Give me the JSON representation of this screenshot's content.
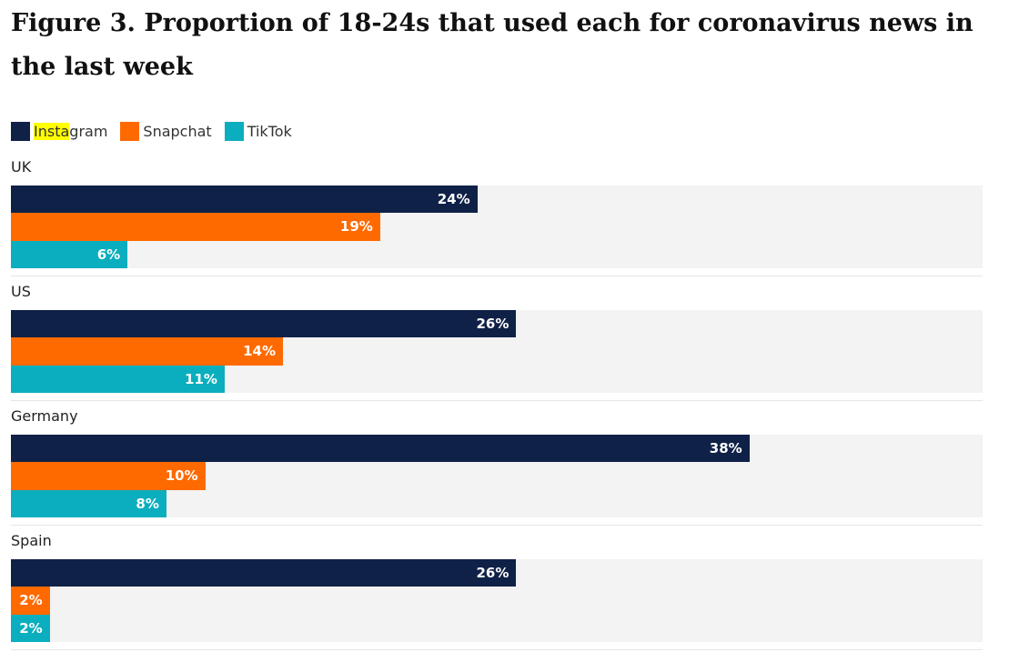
{
  "chart_data": {
    "type": "bar",
    "orientation": "horizontal",
    "title": "Figure 3. Proportion of 18-24s that used each for coronavirus news in the last week",
    "xlim": [
      0,
      50
    ],
    "categories": [
      "UK",
      "US",
      "Germany",
      "Spain"
    ],
    "series": [
      {
        "name": "Instagram",
        "color": "#0f2147",
        "values": [
          24,
          26,
          38,
          26
        ],
        "labels": [
          "24%",
          "26%",
          "38%",
          "26%"
        ]
      },
      {
        "name": "Snapchat",
        "color": "#ff6a00",
        "values": [
          19,
          14,
          10,
          2
        ],
        "labels": [
          "19%",
          "14%",
          "10%",
          "2%"
        ]
      },
      {
        "name": "TikTok",
        "color": "#0aaebe",
        "values": [
          6,
          11,
          8,
          2
        ],
        "labels": [
          "6%",
          "11%",
          "8%",
          "2%"
        ]
      }
    ],
    "legend": {
      "placement": "top-left",
      "highlight": "Insta",
      "highlight_color": "#ffff00"
    }
  }
}
